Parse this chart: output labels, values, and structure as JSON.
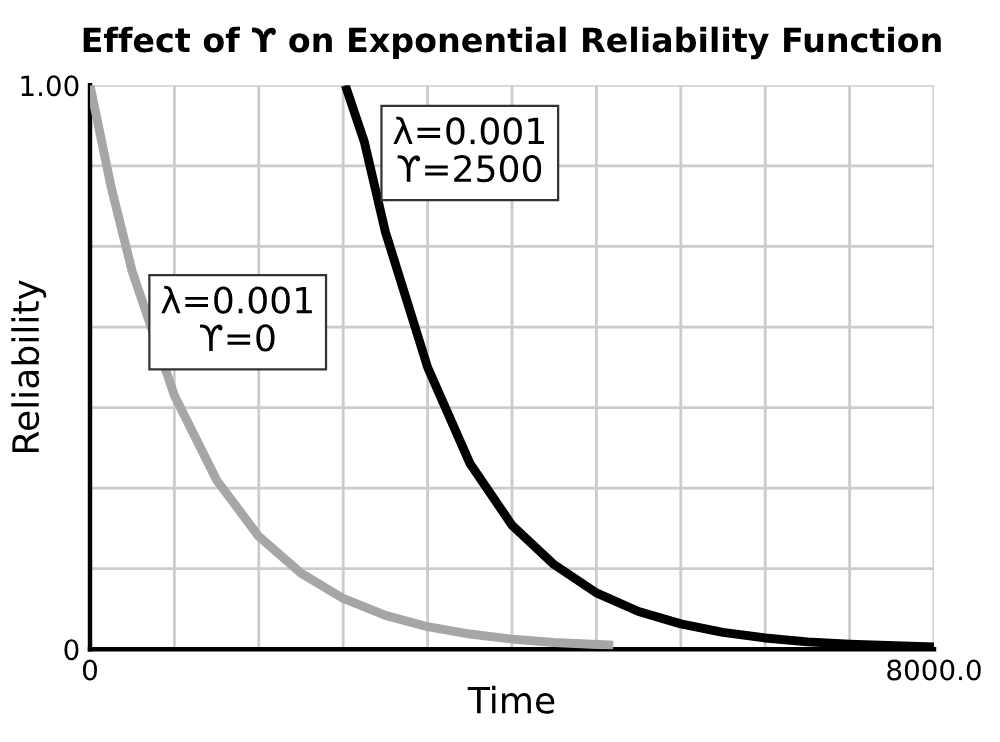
{
  "chart_data": {
    "type": "line",
    "title": "Effect of ϒ on Exponential Reliability Function",
    "xlabel": "Time",
    "ylabel": "Reliability",
    "series": [
      {
        "name": "λ=0.001\nϒ=0",
        "color": "#a6a6a6",
        "x": [
          0,
          200,
          400,
          800,
          1200,
          1600,
          2000,
          2400,
          2800,
          3200,
          3600,
          4000,
          4400,
          4960
        ],
        "values": [
          1.0,
          0.82,
          0.67,
          0.45,
          0.3,
          0.2,
          0.135,
          0.09,
          0.06,
          0.04,
          0.027,
          0.018,
          0.012,
          0.007
        ]
      },
      {
        "name": "λ=0.001\nϒ=2500",
        "color": "#000000",
        "x": [
          2420,
          2600,
          2800,
          3200,
          3600,
          4000,
          4400,
          4800,
          5200,
          5600,
          6000,
          6400,
          6800,
          7200,
          8000
        ],
        "values": [
          1.0,
          0.9,
          0.74,
          0.5,
          0.33,
          0.22,
          0.15,
          0.1,
          0.067,
          0.045,
          0.03,
          0.02,
          0.013,
          0.009,
          0.004
        ]
      }
    ],
    "xlim": [
      0,
      8000
    ],
    "ylim": [
      0,
      1.0
    ],
    "xticks": [
      {
        "value": 0,
        "label": "0"
      },
      {
        "value": 800,
        "label": null
      },
      {
        "value": 1600,
        "label": null
      },
      {
        "value": 2400,
        "label": null
      },
      {
        "value": 3200,
        "label": null
      },
      {
        "value": 4000,
        "label": null
      },
      {
        "value": 4800,
        "label": null
      },
      {
        "value": 5600,
        "label": null
      },
      {
        "value": 6400,
        "label": null
      },
      {
        "value": 7200,
        "label": null
      },
      {
        "value": 8000,
        "label": "8000.0"
      }
    ],
    "yticks": [
      {
        "value": 0,
        "label": "0"
      },
      {
        "value": 0.1429,
        "label": null
      },
      {
        "value": 0.2857,
        "label": null
      },
      {
        "value": 0.4286,
        "label": null
      },
      {
        "value": 0.5714,
        "label": null
      },
      {
        "value": 0.7143,
        "label": null
      },
      {
        "value": 0.8571,
        "label": null
      },
      {
        "value": 1.0,
        "label": "1.00"
      }
    ],
    "grid": true,
    "legend": false,
    "marker": "none",
    "line_style": "solid"
  }
}
